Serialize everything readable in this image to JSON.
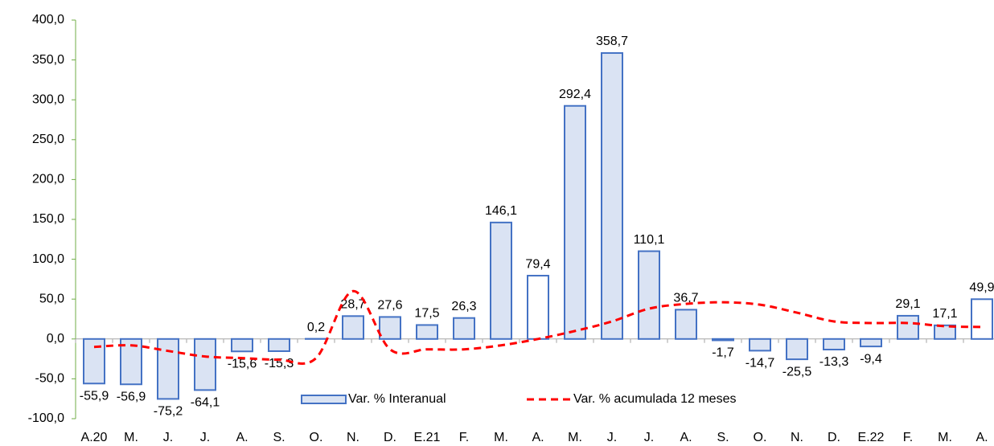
{
  "chart_data": {
    "type": "bar_line",
    "categories": [
      "A.20",
      "M.",
      "J.",
      "J.",
      "A.",
      "S.",
      "O.",
      "N.",
      "D.",
      "E.21",
      "F.",
      "M.",
      "A.",
      "M.",
      "J.",
      "J.",
      "A.",
      "S.",
      "O.",
      "N.",
      "D.",
      "E.22",
      "F.",
      "M.",
      "A."
    ],
    "series": [
      {
        "name": "Var. % Interanual",
        "type": "bar",
        "color": "#4472c4",
        "colors": [
          "#dae3f3",
          "#dae3f3",
          "#dae3f3",
          "#dae3f3",
          "#dae3f3",
          "#dae3f3",
          "#ffffff",
          "#dae3f3",
          "#dae3f3",
          "#dae3f3",
          "#dae3f3",
          "#dae3f3",
          "#ffffff",
          "#dae3f3",
          "#dae3f3",
          "#dae3f3",
          "#dae3f3",
          "#dae3f3",
          "#dae3f3",
          "#dae3f3",
          "#dae3f3",
          "#dae3f3",
          "#dae3f3",
          "#dae3f3",
          "#ffffff"
        ],
        "values": [
          -55.9,
          -56.9,
          -75.2,
          -64.1,
          -15.6,
          -15.3,
          0.2,
          28.7,
          27.6,
          17.5,
          26.3,
          146.1,
          79.4,
          292.4,
          358.7,
          110.1,
          36.7,
          -1.7,
          -14.7,
          -25.5,
          -13.3,
          -9.4,
          29.1,
          17.1,
          49.9
        ],
        "value_labels": [
          "-55,9",
          "-56,9",
          "-75,2",
          "-64,1",
          "-15,6",
          "-15,3",
          "0,2",
          "28,7",
          "27,6",
          "17,5",
          "26,3",
          "146,1",
          "79,4",
          "292,4",
          "358,7",
          "110,1",
          "36,7",
          "-1,7",
          "-14,7",
          "-25,5",
          "-13,3",
          "-9,4",
          "29,1",
          "17,1",
          "49,9"
        ]
      },
      {
        "name": "Var. % acumulada 12 meses",
        "type": "line",
        "color": "#ff0000",
        "values": [
          -10,
          -8,
          -15,
          -22,
          -24,
          -26,
          -24,
          60,
          -13,
          -13,
          -13,
          -8,
          0,
          10,
          22,
          38,
          44,
          46,
          43,
          33,
          22,
          20,
          20,
          16,
          15
        ]
      }
    ],
    "ylim": [
      -100,
      400
    ],
    "yticks": [
      {
        "value": -100,
        "label": "-100,0"
      },
      {
        "value": -50,
        "label": "-50,0"
      },
      {
        "value": 0,
        "label": "0,0"
      },
      {
        "value": 50,
        "label": "50,0"
      },
      {
        "value": 100,
        "label": "100,0"
      },
      {
        "value": 150,
        "label": "150,0"
      },
      {
        "value": 200,
        "label": "200,0"
      },
      {
        "value": 250,
        "label": "250,0"
      },
      {
        "value": 300,
        "label": "300,0"
      },
      {
        "value": 350,
        "label": "350,0"
      },
      {
        "value": 400,
        "label": "400,0"
      }
    ]
  }
}
